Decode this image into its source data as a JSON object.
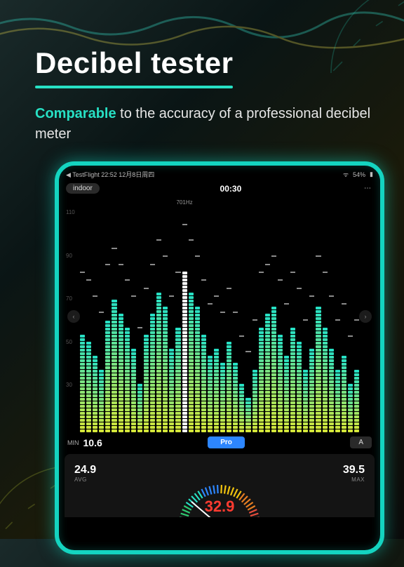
{
  "headline": {
    "title": "Decibel tester",
    "underline_color": "#27e0c4"
  },
  "subhead": {
    "accent": "Comparable",
    "rest": " to the accuracy of a professional decibel meter"
  },
  "device": {
    "border_color": "#14d4c0",
    "glow_color": "rgba(20,212,192,0.55)"
  },
  "statusbar": {
    "left": "◀ TestFlight  22:52  12月8日周四",
    "right_battery": "54%"
  },
  "topbar": {
    "mode_label": "indoor",
    "timer": "00:30",
    "more": "⋯"
  },
  "chart": {
    "y_labels": [
      "110",
      "90",
      "70",
      "50",
      "30"
    ],
    "freq_label": "701Hz",
    "freq_label_index": 16,
    "bar_gradient_top": "#27e0c4",
    "bar_gradient_bottom": "#d4e63a",
    "highlight_color": "#ffffff",
    "peak_color": "#8a8a8a",
    "seg_height": 4,
    "seg_gap": 1,
    "max_segs": 56,
    "bars": [
      {
        "v": 28,
        "p": 40
      },
      {
        "v": 26,
        "p": 38
      },
      {
        "v": 22,
        "p": 34
      },
      {
        "v": 18,
        "p": 30
      },
      {
        "v": 32,
        "p": 42
      },
      {
        "v": 38,
        "p": 46
      },
      {
        "v": 34,
        "p": 42
      },
      {
        "v": 30,
        "p": 38
      },
      {
        "v": 24,
        "p": 34
      },
      {
        "v": 14,
        "p": 26
      },
      {
        "v": 28,
        "p": 36
      },
      {
        "v": 34,
        "p": 42
      },
      {
        "v": 40,
        "p": 48
      },
      {
        "v": 36,
        "p": 44
      },
      {
        "v": 24,
        "p": 34
      },
      {
        "v": 30,
        "p": 40
      },
      {
        "v": 46,
        "p": 52,
        "hl": true
      },
      {
        "v": 40,
        "p": 48
      },
      {
        "v": 36,
        "p": 44
      },
      {
        "v": 28,
        "p": 38
      },
      {
        "v": 22,
        "p": 32
      },
      {
        "v": 24,
        "p": 34
      },
      {
        "v": 20,
        "p": 30
      },
      {
        "v": 26,
        "p": 36
      },
      {
        "v": 20,
        "p": 30
      },
      {
        "v": 14,
        "p": 24
      },
      {
        "v": 10,
        "p": 20
      },
      {
        "v": 18,
        "p": 28
      },
      {
        "v": 30,
        "p": 40
      },
      {
        "v": 34,
        "p": 42
      },
      {
        "v": 36,
        "p": 44
      },
      {
        "v": 28,
        "p": 38
      },
      {
        "v": 22,
        "p": 32
      },
      {
        "v": 30,
        "p": 40
      },
      {
        "v": 26,
        "p": 36
      },
      {
        "v": 18,
        "p": 28
      },
      {
        "v": 24,
        "p": 34
      },
      {
        "v": 36,
        "p": 44
      },
      {
        "v": 30,
        "p": 40
      },
      {
        "v": 24,
        "p": 34
      },
      {
        "v": 18,
        "p": 28
      },
      {
        "v": 22,
        "p": 32
      },
      {
        "v": 14,
        "p": 24
      },
      {
        "v": 18,
        "p": 28
      }
    ]
  },
  "minrow": {
    "min_label": "MIN",
    "min_value": "10.6",
    "pro": "Pro",
    "a": "A"
  },
  "bottom": {
    "avg_value": "24.9",
    "avg_label": "AVG",
    "max_value": "39.5",
    "max_label": "MAX",
    "reading": "32.9",
    "reading_color": "#ff3b30",
    "gauge_colors": [
      "#2ecc71",
      "#27e0c4",
      "#2d86ff",
      "#f1c40f",
      "#e67e22",
      "#e74c3c"
    ]
  }
}
